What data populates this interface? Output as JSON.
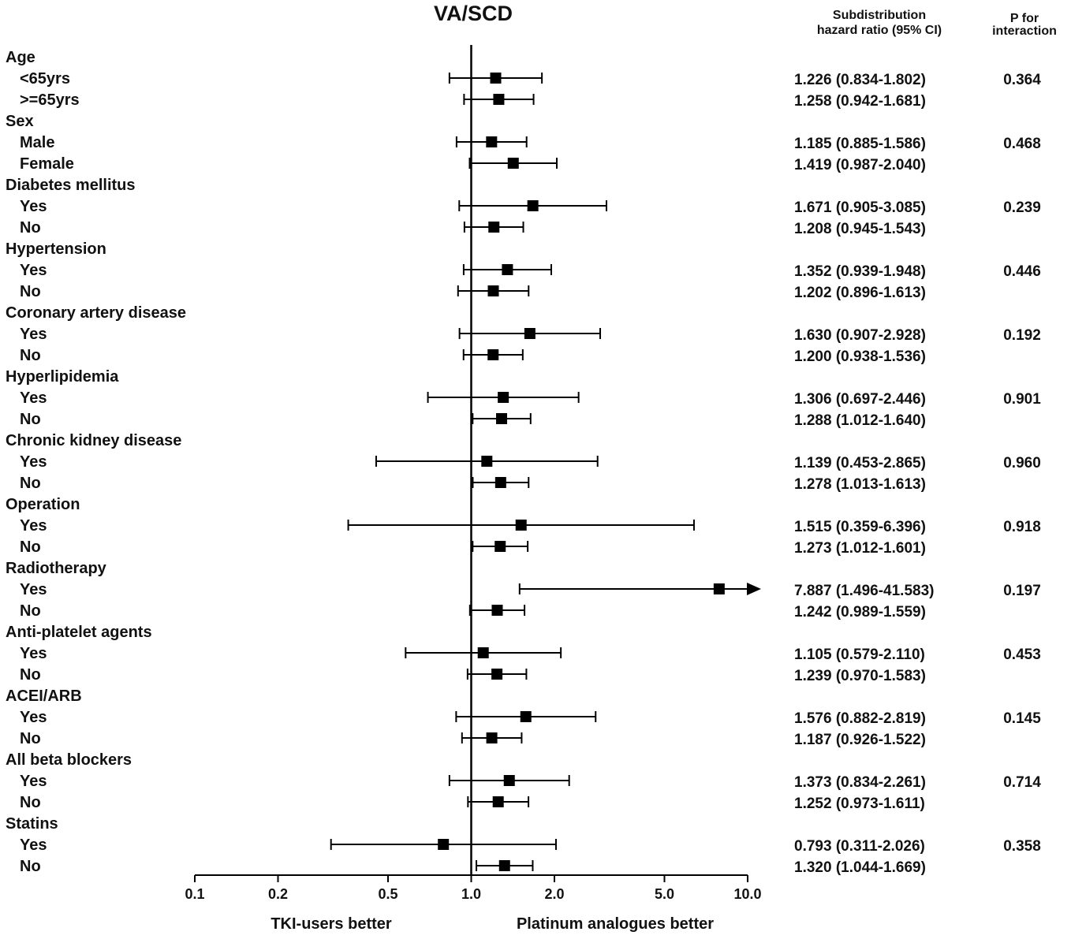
{
  "chart_data": {
    "type": "forest",
    "title": "VA/SCD",
    "columns": {
      "hr_header_line1": "Subdistribution",
      "hr_header_line2": "hazard ratio (95% CI)",
      "p_header_line1": "P for",
      "p_header_line2": "interaction"
    },
    "x_axis": {
      "scale": "log",
      "range": [
        0.1,
        10.0
      ],
      "ticks": [
        0.1,
        0.2,
        0.5,
        1.0,
        2.0,
        5.0,
        10.0
      ],
      "tick_labels": [
        "0.1",
        "0.2",
        "0.5",
        "1.0",
        "2.0",
        "5.0",
        "10.0"
      ],
      "reference_line": 1.0,
      "left_label": "TKI-users better",
      "right_label": "Platinum analogues better"
    },
    "groups": [
      {
        "name": "Age",
        "p": "0.364",
        "subgroups": [
          {
            "label": "<65yrs",
            "hr": 1.226,
            "lo": 0.834,
            "hi": 1.802,
            "text": "1.226 (0.834-1.802)"
          },
          {
            "label": ">=65yrs",
            "hr": 1.258,
            "lo": 0.942,
            "hi": 1.681,
            "text": "1.258 (0.942-1.681)"
          }
        ]
      },
      {
        "name": "Sex",
        "p": "0.468",
        "subgroups": [
          {
            "label": "Male",
            "hr": 1.185,
            "lo": 0.885,
            "hi": 1.586,
            "text": "1.185 (0.885-1.586)"
          },
          {
            "label": "Female",
            "hr": 1.419,
            "lo": 0.987,
            "hi": 2.04,
            "text": "1.419 (0.987-2.040)"
          }
        ]
      },
      {
        "name": "Diabetes mellitus",
        "p": "0.239",
        "subgroups": [
          {
            "label": "Yes",
            "hr": 1.671,
            "lo": 0.905,
            "hi": 3.085,
            "text": "1.671 (0.905-3.085)"
          },
          {
            "label": "No",
            "hr": 1.208,
            "lo": 0.945,
            "hi": 1.543,
            "text": "1.208 (0.945-1.543)"
          }
        ]
      },
      {
        "name": "Hypertension",
        "p": "0.446",
        "subgroups": [
          {
            "label": "Yes",
            "hr": 1.352,
            "lo": 0.939,
            "hi": 1.948,
            "text": "1.352 (0.939-1.948)"
          },
          {
            "label": "No",
            "hr": 1.202,
            "lo": 0.896,
            "hi": 1.613,
            "text": "1.202 (0.896-1.613)"
          }
        ]
      },
      {
        "name": "Coronary artery disease",
        "p": "0.192",
        "subgroups": [
          {
            "label": "Yes",
            "hr": 1.63,
            "lo": 0.907,
            "hi": 2.928,
            "text": "1.630 (0.907-2.928)"
          },
          {
            "label": "No",
            "hr": 1.2,
            "lo": 0.938,
            "hi": 1.536,
            "text": "1.200 (0.938-1.536)"
          }
        ]
      },
      {
        "name": "Hyperlipidemia",
        "p": "0.901",
        "subgroups": [
          {
            "label": "Yes",
            "hr": 1.306,
            "lo": 0.697,
            "hi": 2.446,
            "text": "1.306 (0.697-2.446)"
          },
          {
            "label": "No",
            "hr": 1.288,
            "lo": 1.012,
            "hi": 1.64,
            "text": "1.288 (1.012-1.640)"
          }
        ]
      },
      {
        "name": "Chronic kidney disease",
        "p": "0.960",
        "subgroups": [
          {
            "label": "Yes",
            "hr": 1.139,
            "lo": 0.453,
            "hi": 2.865,
            "text": "1.139 (0.453-2.865)"
          },
          {
            "label": "No",
            "hr": 1.278,
            "lo": 1.013,
            "hi": 1.613,
            "text": "1.278 (1.013-1.613)"
          }
        ]
      },
      {
        "name": "Operation",
        "p": "0.918",
        "subgroups": [
          {
            "label": "Yes",
            "hr": 1.515,
            "lo": 0.359,
            "hi": 6.396,
            "text": "1.515 (0.359-6.396)"
          },
          {
            "label": "No",
            "hr": 1.273,
            "lo": 1.012,
            "hi": 1.601,
            "text": "1.273 (1.012-1.601)"
          }
        ]
      },
      {
        "name": "Radiotherapy",
        "p": "0.197",
        "subgroups": [
          {
            "label": "Yes",
            "hr": 7.887,
            "lo": 1.496,
            "hi": 41.583,
            "text": "7.887 (1.496-41.583)"
          },
          {
            "label": "No",
            "hr": 1.242,
            "lo": 0.989,
            "hi": 1.559,
            "text": "1.242 (0.989-1.559)"
          }
        ]
      },
      {
        "name": "Anti-platelet agents",
        "p": "0.453",
        "subgroups": [
          {
            "label": "Yes",
            "hr": 1.105,
            "lo": 0.579,
            "hi": 2.11,
            "text": "1.105 (0.579-2.110)"
          },
          {
            "label": "No",
            "hr": 1.239,
            "lo": 0.97,
            "hi": 1.583,
            "text": "1.239 (0.970-1.583)"
          }
        ]
      },
      {
        "name": "ACEI/ARB",
        "p": "0.145",
        "subgroups": [
          {
            "label": "Yes",
            "hr": 1.576,
            "lo": 0.882,
            "hi": 2.819,
            "text": "1.576 (0.882-2.819)"
          },
          {
            "label": "No",
            "hr": 1.187,
            "lo": 0.926,
            "hi": 1.522,
            "text": "1.187 (0.926-1.522)"
          }
        ]
      },
      {
        "name": "All beta blockers",
        "p": "0.714",
        "subgroups": [
          {
            "label": "Yes",
            "hr": 1.373,
            "lo": 0.834,
            "hi": 2.261,
            "text": "1.373 (0.834-2.261)"
          },
          {
            "label": "No",
            "hr": 1.252,
            "lo": 0.973,
            "hi": 1.611,
            "text": "1.252 (0.973-1.611)"
          }
        ]
      },
      {
        "name": "Statins",
        "p": "0.358",
        "subgroups": [
          {
            "label": "Yes",
            "hr": 0.793,
            "lo": 0.311,
            "hi": 2.026,
            "text": "0.793 (0.311-2.026)"
          },
          {
            "label": "No",
            "hr": 1.32,
            "lo": 1.044,
            "hi": 1.669,
            "text": "1.320 (1.044-1.669)"
          }
        ]
      }
    ]
  }
}
